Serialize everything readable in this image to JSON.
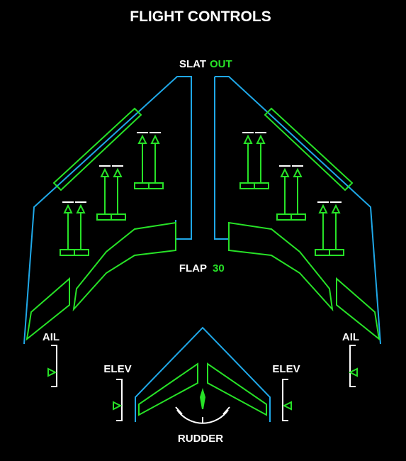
{
  "title": "FLIGHT CONTROLS",
  "slat": {
    "label": "SLAT",
    "value": "OUT"
  },
  "flap": {
    "label": "FLAP",
    "value": "30"
  },
  "labels": {
    "ail_left": "AIL",
    "ail_right": "AIL",
    "elev_left": "ELEV",
    "elev_right": "ELEV",
    "rudder": "RUDDER"
  },
  "colors": {
    "outline": "#1fa8e8",
    "surface": "#27e227",
    "text": "#ffffff",
    "background": "#000000"
  },
  "icons": {
    "spoiler": "up-arrow-icon",
    "aileron_pointer": "triangle-pointer-icon",
    "rudder_pointer": "needle-icon"
  }
}
